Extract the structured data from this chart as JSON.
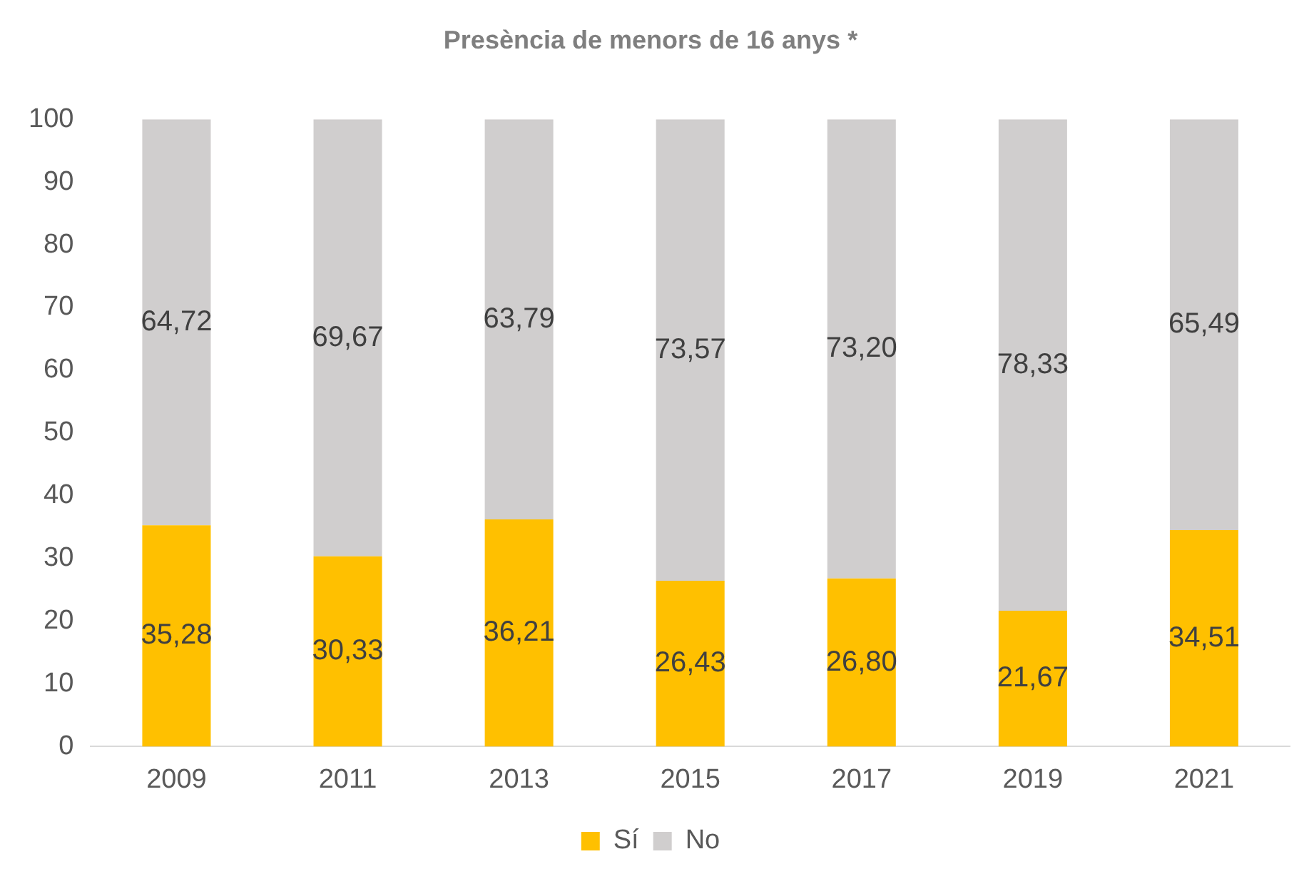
{
  "chart_data": {
    "type": "bar",
    "title": "Presència de menors de 16 anys *",
    "categories": [
      "2009",
      "2011",
      "2013",
      "2015",
      "2017",
      "2019",
      "2021"
    ],
    "stacked": true,
    "ylim": [
      0,
      100
    ],
    "yticks": [
      0,
      10,
      20,
      30,
      40,
      50,
      60,
      70,
      80,
      90,
      100
    ],
    "grid": false,
    "legend": "bottom",
    "series": [
      {
        "name": "Sí",
        "color": "#ffc000",
        "values": [
          35.28,
          30.33,
          36.21,
          26.43,
          26.8,
          21.67,
          34.51
        ],
        "value_labels": [
          "35,28",
          "30,33",
          "36,21",
          "26,43",
          "26,80",
          "21,67",
          "34,51"
        ]
      },
      {
        "name": "No",
        "color": "#d0cece",
        "values": [
          64.72,
          69.67,
          63.79,
          73.57,
          73.2,
          78.33,
          65.49
        ],
        "value_labels": [
          "64,72",
          "69,67",
          "63,79",
          "73,57",
          "73,20",
          "78,33",
          "65,49"
        ]
      }
    ]
  }
}
